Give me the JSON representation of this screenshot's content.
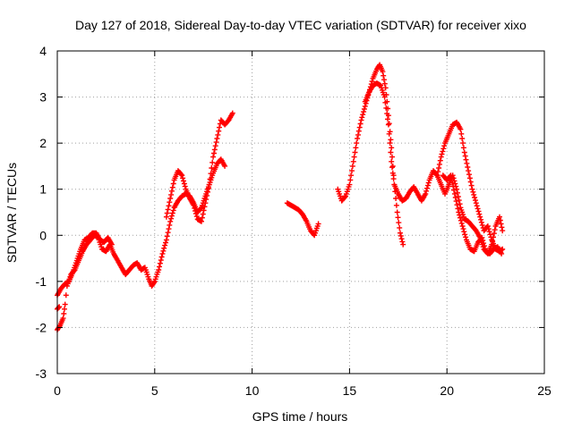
{
  "chart_data": {
    "type": "scatter",
    "title": "Day 127 of 2018, Sidereal Day-to-day VTEC variation (SDTVAR) for receiver xixo",
    "xlabel": "GPS time / hours",
    "ylabel": "SDTVAR / TECUs",
    "xlim": [
      0,
      25
    ],
    "ylim": [
      -3,
      4
    ],
    "xticks": [
      0,
      5,
      10,
      15,
      20,
      25
    ],
    "yticks": [
      -3,
      -2,
      -1,
      0,
      1,
      2,
      3,
      4
    ],
    "grid": true,
    "marker": "+",
    "color": "#ff0000",
    "series": [
      {
        "name": "SDTVAR",
        "segments": [
          [
            [
              0.0,
              -2.05
            ],
            [
              0.15,
              -1.95
            ],
            [
              0.3,
              -1.8
            ],
            [
              0.4,
              -1.5
            ],
            [
              0.5,
              -1.1
            ],
            [
              0.7,
              -0.85
            ],
            [
              0.9,
              -0.75
            ],
            [
              1.1,
              -0.55
            ],
            [
              1.3,
              -0.35
            ],
            [
              1.5,
              -0.2
            ],
            [
              1.7,
              -0.1
            ],
            [
              1.9,
              0.0
            ],
            [
              2.1,
              -0.05
            ],
            [
              2.3,
              -0.3
            ],
            [
              2.5,
              -0.35
            ],
            [
              2.7,
              -0.2
            ],
            [
              2.9,
              -0.4
            ],
            [
              3.1,
              -0.55
            ],
            [
              3.3,
              -0.7
            ],
            [
              3.5,
              -0.85
            ],
            [
              3.7,
              -0.75
            ],
            [
              3.9,
              -0.65
            ],
            [
              4.1,
              -0.6
            ],
            [
              4.3,
              -0.75
            ],
            [
              4.5,
              -0.7
            ],
            [
              4.7,
              -0.95
            ],
            [
              4.85,
              -1.1
            ],
            [
              5.0,
              -1.0
            ],
            [
              5.2,
              -0.75
            ],
            [
              5.4,
              -0.4
            ],
            [
              5.6,
              -0.1
            ],
            [
              5.8,
              0.3
            ],
            [
              6.0,
              0.6
            ],
            [
              6.2,
              0.75
            ],
            [
              6.4,
              0.85
            ],
            [
              6.6,
              0.9
            ],
            [
              6.8,
              0.85
            ],
            [
              7.0,
              0.7
            ],
            [
              7.2,
              0.5
            ],
            [
              7.4,
              0.6
            ],
            [
              7.6,
              0.85
            ],
            [
              7.8,
              1.1
            ],
            [
              8.0,
              1.35
            ],
            [
              8.2,
              1.55
            ],
            [
              8.4,
              1.65
            ],
            [
              8.6,
              1.5
            ]
          ],
          [
            [
              0.0,
              -1.3
            ],
            [
              0.2,
              -1.15
            ],
            [
              0.4,
              -1.05
            ],
            [
              0.6,
              -1.0
            ],
            [
              0.8,
              -0.8
            ],
            [
              1.0,
              -0.55
            ],
            [
              1.2,
              -0.3
            ],
            [
              1.4,
              -0.1
            ],
            [
              1.6,
              -0.05
            ],
            [
              1.8,
              0.05
            ],
            [
              2.0,
              0.05
            ],
            [
              2.2,
              -0.1
            ],
            [
              2.4,
              -0.15
            ],
            [
              2.6,
              -0.05
            ],
            [
              2.8,
              -0.2
            ]
          ],
          [
            [
              5.6,
              0.4
            ],
            [
              5.8,
              0.8
            ],
            [
              6.0,
              1.2
            ],
            [
              6.2,
              1.4
            ],
            [
              6.4,
              1.3
            ],
            [
              6.6,
              1.0
            ],
            [
              6.8,
              0.8
            ],
            [
              7.0,
              0.65
            ],
            [
              7.2,
              0.35
            ],
            [
              7.4,
              0.3
            ],
            [
              7.6,
              0.7
            ],
            [
              7.8,
              1.1
            ],
            [
              8.0,
              1.7
            ],
            [
              8.2,
              2.1
            ],
            [
              8.4,
              2.5
            ],
            [
              8.6,
              2.4
            ],
            [
              8.8,
              2.5
            ],
            [
              9.0,
              2.65
            ]
          ],
          [
            [
              0.0,
              -1.6
            ],
            [
              0.1,
              -1.55
            ]
          ],
          [
            [
              11.8,
              0.7
            ],
            [
              12.0,
              0.65
            ],
            [
              12.2,
              0.6
            ],
            [
              12.4,
              0.55
            ],
            [
              12.6,
              0.45
            ],
            [
              12.8,
              0.3
            ],
            [
              13.0,
              0.1
            ],
            [
              13.2,
              0.0
            ],
            [
              13.4,
              0.25
            ]
          ],
          [
            [
              14.4,
              1.0
            ],
            [
              14.6,
              0.75
            ],
            [
              14.8,
              0.85
            ],
            [
              15.0,
              1.1
            ],
            [
              15.2,
              1.6
            ],
            [
              15.4,
              2.1
            ],
            [
              15.6,
              2.5
            ],
            [
              15.8,
              2.8
            ],
            [
              16.0,
              3.1
            ],
            [
              16.2,
              3.4
            ],
            [
              16.4,
              3.6
            ],
            [
              16.55,
              3.7
            ],
            [
              16.7,
              3.55
            ],
            [
              16.85,
              3.2
            ],
            [
              17.0,
              2.6
            ],
            [
              17.15,
              1.9
            ],
            [
              17.3,
              1.1
            ],
            [
              17.45,
              0.5
            ],
            [
              17.6,
              0.05
            ],
            [
              17.75,
              -0.2
            ]
          ],
          [
            [
              15.8,
              2.9
            ],
            [
              16.0,
              3.1
            ],
            [
              16.2,
              3.25
            ],
            [
              16.4,
              3.3
            ],
            [
              16.6,
              3.25
            ],
            [
              16.8,
              3.0
            ],
            [
              17.0,
              2.4
            ],
            [
              17.15,
              1.6
            ],
            [
              17.3,
              1.1
            ],
            [
              17.5,
              0.9
            ],
            [
              17.7,
              0.75
            ],
            [
              17.9,
              0.8
            ],
            [
              18.1,
              0.95
            ],
            [
              18.3,
              1.05
            ],
            [
              18.5,
              0.9
            ],
            [
              18.7,
              0.75
            ],
            [
              18.9,
              0.9
            ],
            [
              19.1,
              1.2
            ],
            [
              19.3,
              1.4
            ],
            [
              19.5,
              1.3
            ],
            [
              19.7,
              1.1
            ],
            [
              19.9,
              0.9
            ],
            [
              20.1,
              1.1
            ],
            [
              20.3,
              1.3
            ],
            [
              20.5,
              1.0
            ],
            [
              20.7,
              0.6
            ],
            [
              20.9,
              0.35
            ],
            [
              21.1,
              0.3
            ],
            [
              21.3,
              0.2
            ],
            [
              21.5,
              0.1
            ],
            [
              21.7,
              -0.05
            ],
            [
              21.9,
              -0.3
            ],
            [
              22.1,
              -0.4
            ],
            [
              22.3,
              -0.2
            ],
            [
              22.5,
              0.2
            ],
            [
              22.7,
              0.4
            ],
            [
              22.85,
              0.1
            ]
          ],
          [
            [
              19.5,
              1.3
            ],
            [
              19.7,
              1.7
            ],
            [
              19.9,
              2.0
            ],
            [
              20.1,
              2.2
            ],
            [
              20.3,
              2.4
            ],
            [
              20.5,
              2.45
            ],
            [
              20.7,
              2.3
            ],
            [
              20.9,
              1.8
            ],
            [
              21.1,
              1.4
            ],
            [
              21.3,
              1.0
            ],
            [
              21.5,
              0.7
            ],
            [
              21.7,
              0.4
            ],
            [
              21.9,
              0.1
            ],
            [
              22.1,
              0.2
            ],
            [
              22.3,
              -0.1
            ],
            [
              22.5,
              -0.3
            ],
            [
              22.7,
              -0.35
            ],
            [
              22.85,
              -0.3
            ]
          ],
          [
            [
              19.8,
              1.3
            ],
            [
              20.0,
              1.2
            ],
            [
              20.2,
              1.3
            ],
            [
              20.4,
              0.9
            ],
            [
              20.6,
              0.5
            ],
            [
              20.8,
              0.2
            ],
            [
              21.0,
              -0.1
            ],
            [
              21.2,
              -0.3
            ],
            [
              21.4,
              -0.35
            ],
            [
              21.6,
              -0.15
            ],
            [
              21.8,
              -0.05
            ],
            [
              22.0,
              -0.35
            ],
            [
              22.2,
              -0.4
            ],
            [
              22.4,
              -0.3
            ],
            [
              22.6,
              -0.25
            ],
            [
              22.8,
              -0.4
            ]
          ]
        ]
      }
    ]
  }
}
